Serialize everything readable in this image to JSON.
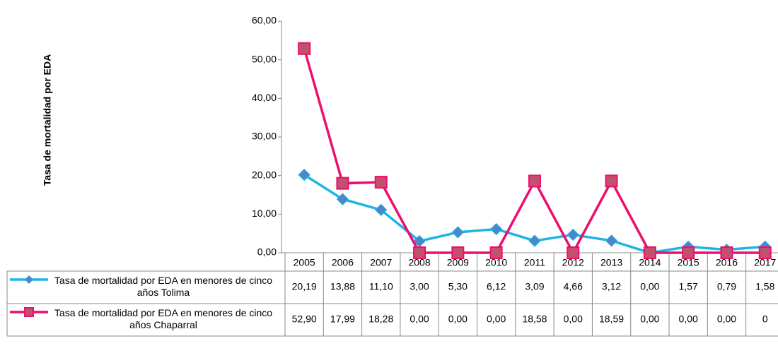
{
  "chart_data": {
    "type": "line",
    "y_axis_label": "Tasa de mortalidad por EDA",
    "categories": [
      "2005",
      "2006",
      "2007",
      "2008",
      "2009",
      "2010",
      "2011",
      "2012",
      "2013",
      "2014",
      "2015",
      "2016",
      "2017"
    ],
    "ylim": [
      0,
      60
    ],
    "yticks": [
      {
        "value": 0,
        "label": "0,00"
      },
      {
        "value": 10,
        "label": "10,00"
      },
      {
        "value": 20,
        "label": "20,00"
      },
      {
        "value": 30,
        "label": "30,00"
      },
      {
        "value": 40,
        "label": "40,00"
      },
      {
        "value": 50,
        "label": "50,00"
      },
      {
        "value": 60,
        "label": "60,00"
      }
    ],
    "series": [
      {
        "name": "Tasa de mortalidad por EDA en menores de cinco años Tolima",
        "color": "#1fb4e6",
        "marker_color": "#4a88c9",
        "marker": "diamond",
        "values": [
          20.19,
          13.88,
          11.1,
          3.0,
          5.3,
          6.12,
          3.09,
          4.66,
          3.12,
          0.0,
          1.57,
          0.79,
          1.58
        ],
        "value_labels": [
          "20,19",
          "13,88",
          "11,10",
          "3,00",
          "5,30",
          "6,12",
          "3,09",
          "4,66",
          "3,12",
          "0,00",
          "1,57",
          "0,79",
          "1,58"
        ]
      },
      {
        "name": "Tasa de mortalidad por EDA en menores de cinco años Chaparral",
        "color": "#ec0f6e",
        "marker_color": "#c3506d",
        "marker": "square",
        "values": [
          52.9,
          17.99,
          18.28,
          0.0,
          0.0,
          0.0,
          18.58,
          0.0,
          18.59,
          0.0,
          0.0,
          0.0,
          0
        ],
        "value_labels": [
          "52,90",
          "17,99",
          "18,28",
          "0,00",
          "0,00",
          "0,00",
          "18,58",
          "0,00",
          "18,59",
          "0,00",
          "0,00",
          "0,00",
          "0"
        ]
      }
    ]
  }
}
